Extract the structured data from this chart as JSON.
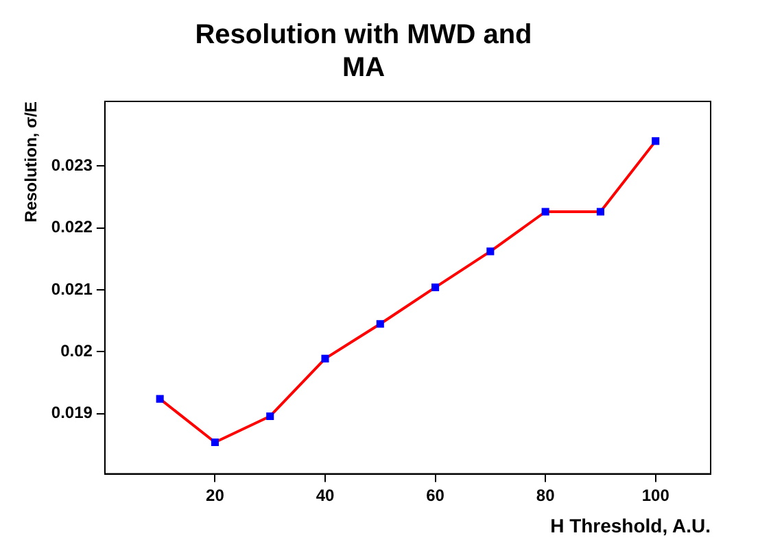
{
  "chart_data": {
    "type": "line",
    "title": "Resolution with MWD and MA",
    "xlabel": "H Threshold, A.U.",
    "ylabel": "Resolution, σ/E",
    "x": [
      10,
      20,
      30,
      40,
      50,
      60,
      70,
      80,
      90,
      100
    ],
    "series": [
      {
        "color": "#ff0000",
        "colors": [
          "#0000ff",
          "#0000ff",
          "#0000ff",
          "#0000ff",
          "#0000ff",
          "#0000ff",
          "#0000ff",
          "#0000ff",
          "#0000ff",
          "#0000ff"
        ],
        "values": [
          0.01924,
          0.01854,
          0.01896,
          0.01989,
          0.02045,
          0.02104,
          0.02162,
          0.02226,
          0.02226,
          0.0234
        ]
      }
    ],
    "xlim": [
      0,
      110
    ],
    "xticks": [
      20,
      40,
      60,
      80,
      100
    ],
    "ylim": [
      0.01803,
      0.02404
    ],
    "yticks": [
      0.019,
      0.02,
      0.021,
      0.022,
      0.023
    ],
    "grid": false,
    "legend": false,
    "marker": "square",
    "line_style": "solid"
  }
}
